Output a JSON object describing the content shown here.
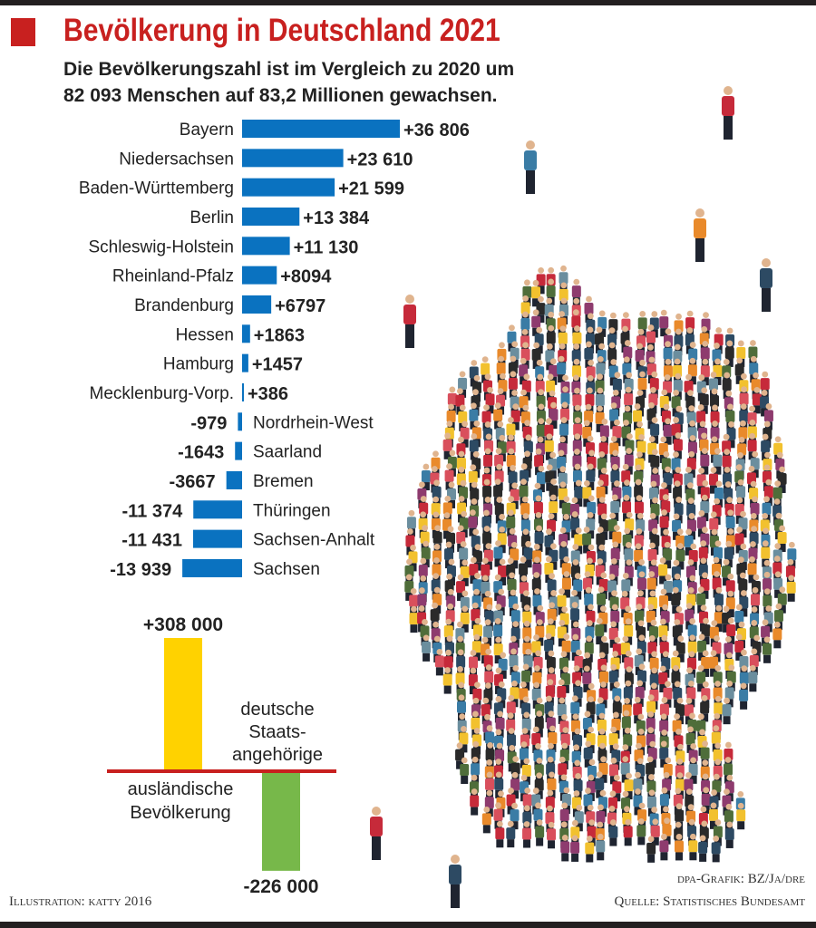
{
  "header": {
    "title": "Bevölkerung in Deutschland 2021",
    "subtitle_line1": "Die Bevölkerungszahl ist im Vergleich zu 2020 um",
    "subtitle_line2": "82 093 Menschen auf 83,2 Millionen gewachsen."
  },
  "chart_data": [
    {
      "type": "bar",
      "orientation": "horizontal",
      "categories": [
        "Bayern",
        "Niedersachsen",
        "Baden-Württemberg",
        "Berlin",
        "Schleswig-Holstein",
        "Rheinland-Pfalz",
        "Brandenburg",
        "Hessen",
        "Hamburg",
        "Mecklenburg-Vorp.",
        "Nordrhein-West",
        "Saarland",
        "Bremen",
        "Thüringen",
        "Sachsen-Anhalt",
        "Sachsen"
      ],
      "values": [
        36806,
        23610,
        21599,
        13384,
        11130,
        8094,
        6797,
        1863,
        1457,
        386,
        -979,
        -1643,
        -3667,
        -11374,
        -11431,
        -13939
      ],
      "data_labels": [
        "+36 806",
        "+23 610",
        "+21 599",
        "+13 384",
        "+11 130",
        "+8094",
        "+6797",
        "+1863",
        "+1457",
        "+386",
        "-979",
        "-1643",
        "-3667",
        "-11 374",
        "-11 431",
        "-13 939"
      ],
      "color": "#0a72c0"
    },
    {
      "type": "bar",
      "categories": [
        "ausländische Bevölkerung",
        "deutsche Staatsangehörige"
      ],
      "category_labels": [
        [
          "ausländische",
          "Bevölkerung"
        ],
        [
          "deutsche",
          "Staats-",
          "angehörige"
        ]
      ],
      "values": [
        308000,
        -226000
      ],
      "data_labels": [
        "+308 000",
        "-226 000"
      ],
      "colors": [
        "#ffd200",
        "#77b84a"
      ],
      "baseline_color": "#c8201f"
    }
  ],
  "credits": {
    "illustration": "Illustration: katty 2016",
    "grafik": "dpa-Grafik: BZ/Ja/dre",
    "source": "Quelle: Statistisches Bundesamt"
  }
}
